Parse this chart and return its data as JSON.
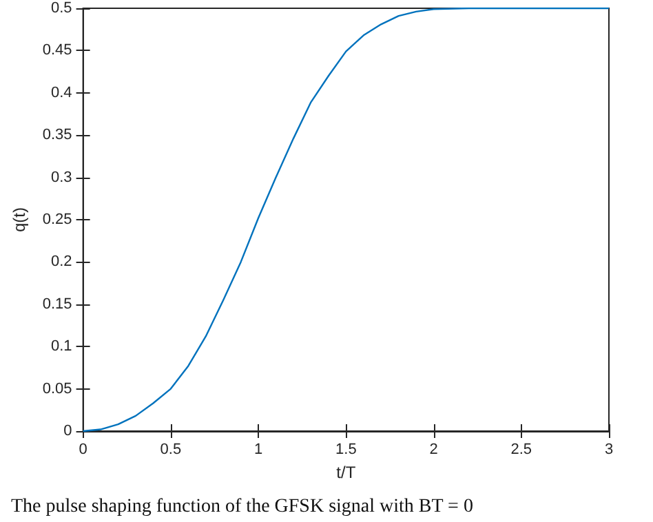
{
  "chart_data": {
    "type": "line",
    "xlabel": "t/T",
    "ylabel": "q(t)",
    "x": [
      0,
      0.1,
      0.2,
      0.3,
      0.4,
      0.5,
      0.6,
      0.7,
      0.8,
      0.9,
      1.0,
      1.1,
      1.2,
      1.3,
      1.4,
      1.5,
      1.6,
      1.7,
      1.8,
      1.9,
      2.0,
      2.2,
      2.5,
      3.0
    ],
    "series": [
      {
        "color": "#0072bd",
        "values": [
          0,
          0.002,
          0.008,
          0.018,
          0.033,
          0.05,
          0.077,
          0.112,
          0.155,
          0.2,
          0.252,
          0.3,
          0.346,
          0.389,
          0.42,
          0.449,
          0.468,
          0.481,
          0.491,
          0.496,
          0.499,
          0.5,
          0.5,
          0.5
        ]
      }
    ],
    "xlim": [
      0,
      3
    ],
    "xticks": [
      0,
      0.5,
      1,
      1.5,
      2,
      2.5,
      3
    ],
    "ylim": [
      0,
      0.5
    ],
    "yticks": [
      0,
      0.05,
      0.1,
      0.15,
      0.2,
      0.25,
      0.3,
      0.35,
      0.4,
      0.45,
      0.5
    ],
    "grid": false,
    "marker": "none",
    "line_style": "solid",
    "annotations": [
      "The pulse shaping function of the GFSK signal with BT = 0"
    ]
  }
}
